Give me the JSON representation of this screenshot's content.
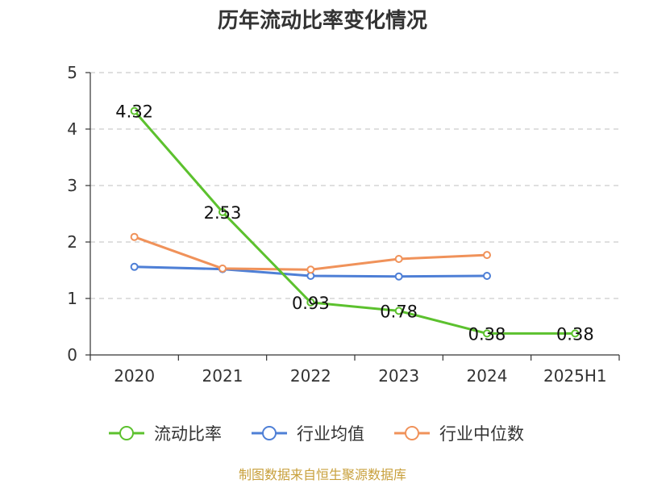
{
  "chart_data": {
    "type": "line",
    "title": "历年流动比率变化情况",
    "categories": [
      "2020",
      "2021",
      "2022",
      "2023",
      "2024",
      "2025H1"
    ],
    "ylim": [
      0,
      5
    ],
    "yticks": [
      0,
      1,
      2,
      3,
      4,
      5
    ],
    "grid": true,
    "legend_position": "bottom",
    "series": [
      {
        "name": "流动比率",
        "color": "#5cc12e",
        "values": [
          4.32,
          2.53,
          0.93,
          0.78,
          0.38,
          0.38
        ],
        "labels": [
          "4.32",
          "2.53",
          "0.93",
          "0.78",
          "0.38",
          "0.38"
        ]
      },
      {
        "name": "行业均值",
        "color": "#4e7fd6",
        "values": [
          1.56,
          1.52,
          1.4,
          1.39,
          1.4,
          null
        ]
      },
      {
        "name": "行业中位数",
        "color": "#f0925a",
        "values": [
          2.09,
          1.53,
          1.51,
          1.7,
          1.77,
          null
        ]
      }
    ]
  },
  "source_text": "制图数据来自恒生聚源数据库"
}
